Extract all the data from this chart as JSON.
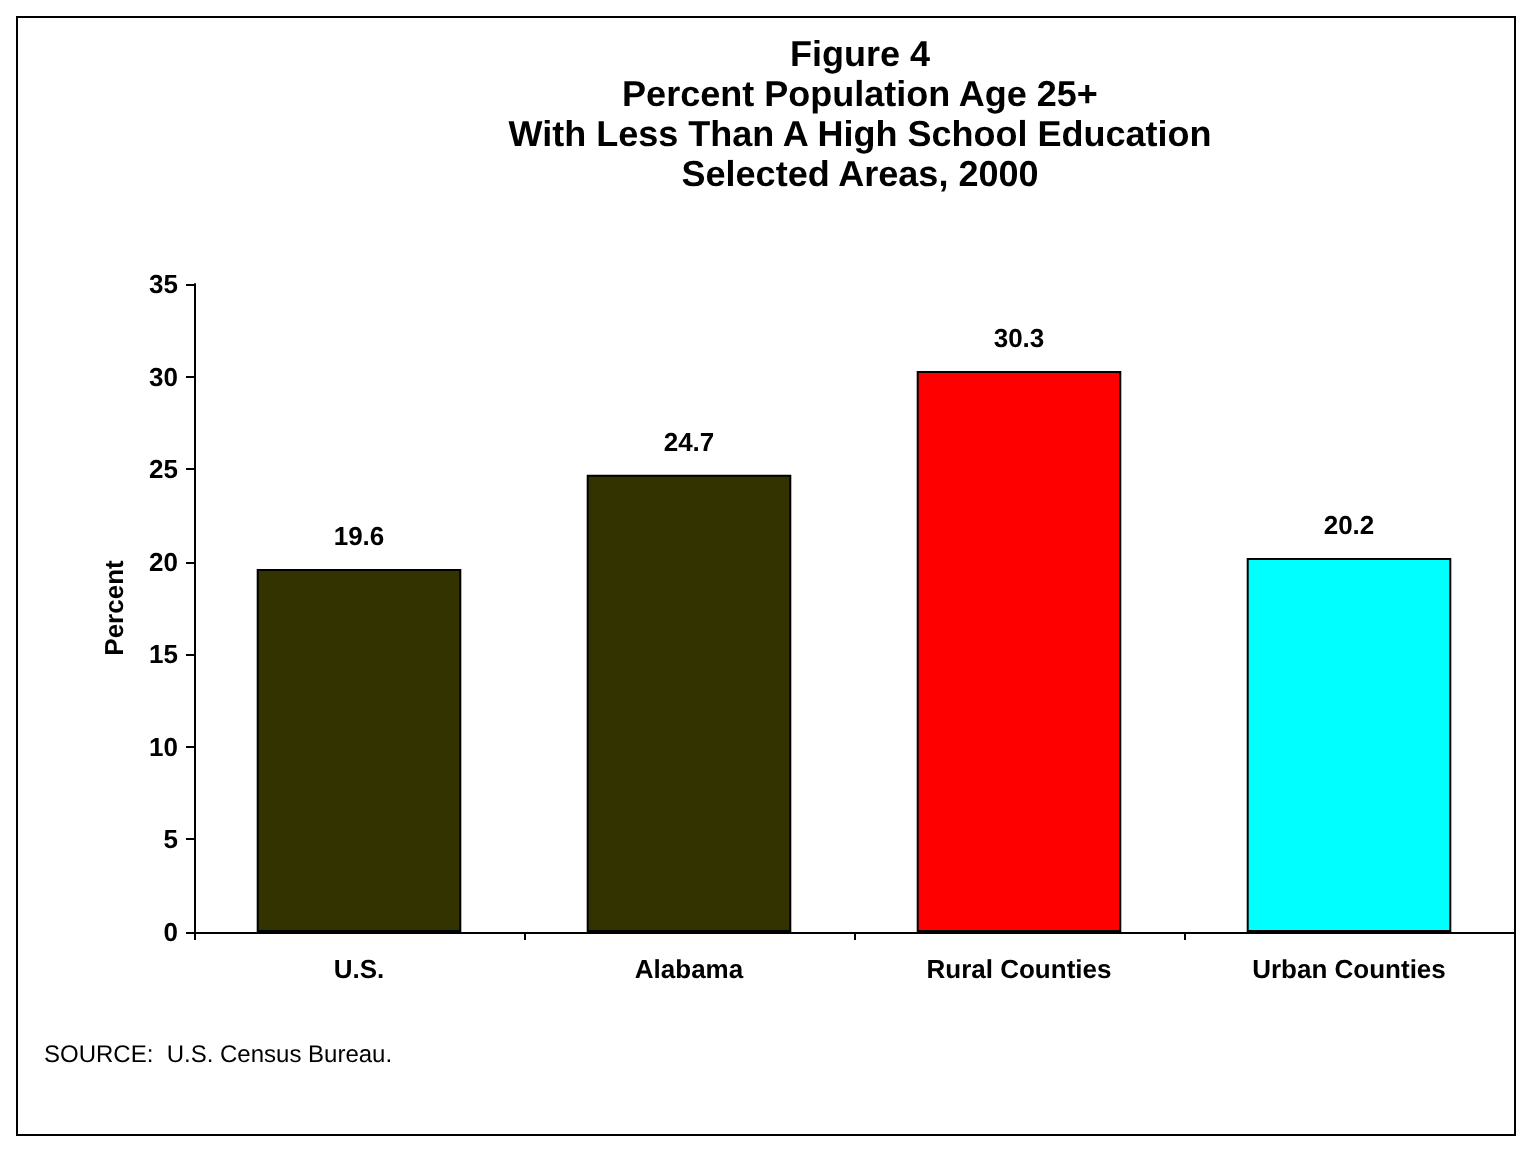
{
  "chart_data": {
    "type": "bar",
    "title": "Figure 4\nPercent Population Age 25+\nWith Less Than A High School Education\nSelected Areas, 2000",
    "ylabel": "Percent",
    "categories": [
      "U.S.",
      "Alabama",
      "Rural Counties",
      "Urban Counties"
    ],
    "values": [
      19.6,
      24.7,
      30.3,
      20.2
    ],
    "colors": [
      "#333300",
      "#333300",
      "#ff0000",
      "#00ffff"
    ],
    "ylim": [
      0,
      35
    ],
    "yticks": [
      0,
      5,
      10,
      15,
      20,
      25,
      30,
      35
    ],
    "data_labels": true,
    "grid": false,
    "annotations": [
      "SOURCE:  U.S. Census Bureau."
    ]
  }
}
